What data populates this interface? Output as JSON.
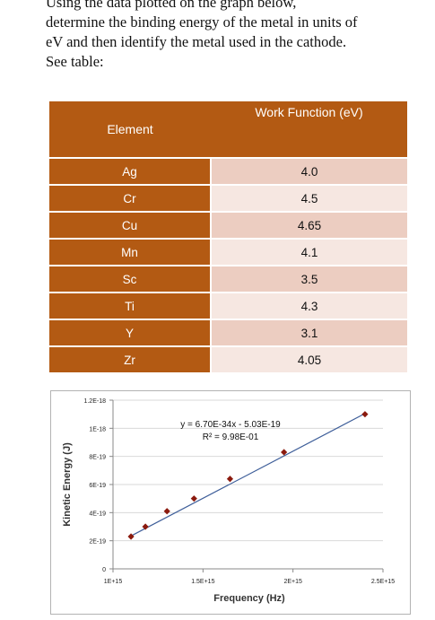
{
  "question": {
    "line1": "Using the data plotted on the graph below,",
    "line2": "determine the binding energy of the metal in units of",
    "line3": "eV and then identify the metal used in the cathode.",
    "line4": "See table:"
  },
  "table": {
    "header_element": "Element",
    "header_work_function": "Work Function (eV)",
    "rows": [
      {
        "element": "Ag",
        "wf": "4.0"
      },
      {
        "element": "Cr",
        "wf": "4.5"
      },
      {
        "element": "Cu",
        "wf": "4.65"
      },
      {
        "element": "Mn",
        "wf": "4.1"
      },
      {
        "element": "Sc",
        "wf": "3.5"
      },
      {
        "element": "Ti",
        "wf": "4.3"
      },
      {
        "element": "Y",
        "wf": "3.1"
      },
      {
        "element": "Zr",
        "wf": "4.05"
      }
    ],
    "colors": {
      "header": "#b35a13",
      "row_odd": "#eccdc1",
      "row_even": "#f6e7e1"
    }
  },
  "chart_data": {
    "type": "scatter",
    "title": "",
    "xlabel": "Frequency (Hz)",
    "ylabel": "Kinetic Energy (J)",
    "xlim": [
      1000000000000000.0,
      2500000000000000.0
    ],
    "ylim": [
      0,
      1.2e-18
    ],
    "x_ticks": [
      1000000000000000.0,
      1500000000000000.0,
      2000000000000000.0,
      2500000000000000.0
    ],
    "x_tick_labels": [
      "1E+15",
      "1.5E+15",
      "2E+15",
      "2.5E+15"
    ],
    "y_ticks": [
      0,
      2e-19,
      4e-19,
      6e-19,
      8e-19,
      1e-18,
      1.2e-18
    ],
    "y_tick_labels": [
      "0",
      "2E-19",
      "4E-19",
      "6E-19",
      "8E-19",
      "1E-18",
      "1.2E-18"
    ],
    "grid": "horizontal",
    "series": [
      {
        "x": [
          1100000000000000.0,
          1180000000000000.0,
          1300000000000000.0,
          1450000000000000.0,
          1650000000000000.0,
          1950000000000000.0,
          2400000000000000.0
        ],
        "y": [
          2.3e-19,
          3e-19,
          4.1e-19,
          5e-19,
          6.4e-19,
          8.3e-19,
          1.1e-18
        ]
      }
    ],
    "trendline": {
      "slope": 6.7e-34,
      "intercept": -5.03e-19,
      "equation": "y = 6.70E-34x - 5.03E-19",
      "r_squared": "R² = 9.98E-01"
    },
    "colors": {
      "marker": "#8b1a0e",
      "line": "#3f5f9a",
      "grid": "#d9d9d9"
    }
  }
}
